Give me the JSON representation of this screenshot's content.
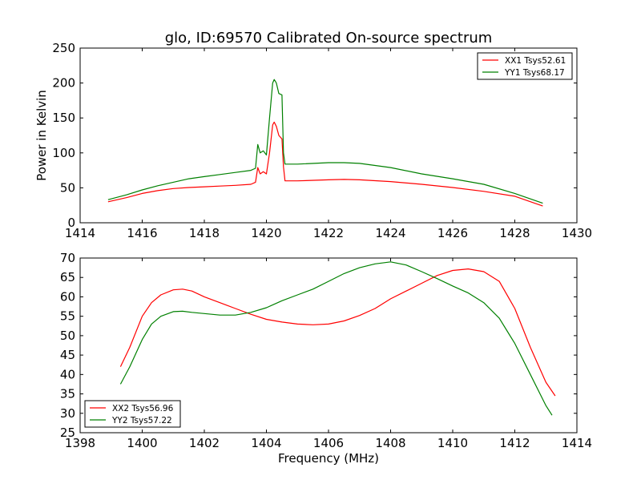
{
  "figure": {
    "title": "glo, ID:69570 Calibrated On-source spectrum",
    "xlabel": "Frequency (MHz)"
  },
  "colors": {
    "red": "#ff0000",
    "green": "#008000"
  },
  "chart_data": [
    {
      "type": "line",
      "ylabel": "Power in Kelvin",
      "xlim": [
        1414,
        1430
      ],
      "ylim": [
        0,
        250
      ],
      "xticks": [
        "1414",
        "1416",
        "1418",
        "1420",
        "1422",
        "1424",
        "1426",
        "1428",
        "1430"
      ],
      "yticks": [
        "0",
        "50",
        "100",
        "150",
        "200",
        "250"
      ],
      "legend": "top-right",
      "series": [
        {
          "name": "XX1 Tsys52.61",
          "color": "#ff0000",
          "points": [
            [
              1414.9,
              30
            ],
            [
              1415.5,
              36
            ],
            [
              1416.0,
              42
            ],
            [
              1416.5,
              46
            ],
            [
              1417.0,
              49
            ],
            [
              1417.5,
              50.5
            ],
            [
              1418.0,
              51.5
            ],
            [
              1418.5,
              52.5
            ],
            [
              1419.0,
              53.5
            ],
            [
              1419.5,
              55
            ],
            [
              1419.65,
              58
            ],
            [
              1419.72,
              79
            ],
            [
              1419.8,
              70
            ],
            [
              1419.9,
              73
            ],
            [
              1420.0,
              70
            ],
            [
              1420.1,
              100
            ],
            [
              1420.2,
              140
            ],
            [
              1420.25,
              144
            ],
            [
              1420.32,
              138
            ],
            [
              1420.4,
              125
            ],
            [
              1420.5,
              120
            ],
            [
              1420.55,
              80
            ],
            [
              1420.6,
              60
            ],
            [
              1421.0,
              60
            ],
            [
              1422.0,
              61.5
            ],
            [
              1422.5,
              62
            ],
            [
              1423.0,
              61.5
            ],
            [
              1424.0,
              59
            ],
            [
              1425.0,
              55
            ],
            [
              1426.0,
              50.5
            ],
            [
              1427.0,
              45
            ],
            [
              1428.0,
              38
            ],
            [
              1428.9,
              24
            ]
          ]
        },
        {
          "name": "YY1 Tsys68.17",
          "color": "#008000",
          "points": [
            [
              1414.9,
              33
            ],
            [
              1415.5,
              40
            ],
            [
              1416.0,
              47
            ],
            [
              1416.5,
              53
            ],
            [
              1417.0,
              58
            ],
            [
              1417.5,
              63
            ],
            [
              1418.0,
              66
            ],
            [
              1418.5,
              69
            ],
            [
              1419.0,
              72
            ],
            [
              1419.5,
              75
            ],
            [
              1419.65,
              78
            ],
            [
              1419.72,
              112
            ],
            [
              1419.8,
              100
            ],
            [
              1419.9,
              103
            ],
            [
              1420.0,
              97
            ],
            [
              1420.1,
              150
            ],
            [
              1420.2,
              200
            ],
            [
              1420.25,
              205
            ],
            [
              1420.32,
              200
            ],
            [
              1420.4,
              185
            ],
            [
              1420.5,
              183
            ],
            [
              1420.55,
              100
            ],
            [
              1420.6,
              84
            ],
            [
              1421.0,
              84
            ],
            [
              1422.0,
              86
            ],
            [
              1422.5,
              86
            ],
            [
              1423.0,
              85
            ],
            [
              1424.0,
              79
            ],
            [
              1425.0,
              70
            ],
            [
              1426.0,
              63
            ],
            [
              1427.0,
              55
            ],
            [
              1428.0,
              42
            ],
            [
              1428.9,
              28
            ]
          ]
        }
      ]
    },
    {
      "type": "line",
      "xlabel": "Frequency (MHz)",
      "xlim": [
        1398,
        1414
      ],
      "ylim": [
        25,
        70
      ],
      "xticks": [
        "1398",
        "1400",
        "1402",
        "1404",
        "1406",
        "1408",
        "1410",
        "1412",
        "1414"
      ],
      "yticks": [
        "25",
        "30",
        "35",
        "40",
        "45",
        "50",
        "55",
        "60",
        "65",
        "70"
      ],
      "legend": "lower-left",
      "series": [
        {
          "name": "XX2 Tsys56.96",
          "color": "#ff0000",
          "points": [
            [
              1399.3,
              42
            ],
            [
              1399.6,
              47
            ],
            [
              1400.0,
              55
            ],
            [
              1400.3,
              58.5
            ],
            [
              1400.6,
              60.5
            ],
            [
              1401.0,
              61.8
            ],
            [
              1401.3,
              62
            ],
            [
              1401.6,
              61.5
            ],
            [
              1402.0,
              60
            ],
            [
              1402.5,
              58.5
            ],
            [
              1403.0,
              57
            ],
            [
              1403.5,
              55.5
            ],
            [
              1404.0,
              54.2
            ],
            [
              1404.5,
              53.5
            ],
            [
              1405.0,
              53
            ],
            [
              1405.5,
              52.8
            ],
            [
              1406.0,
              53
            ],
            [
              1406.5,
              53.8
            ],
            [
              1407.0,
              55.2
            ],
            [
              1407.5,
              57
            ],
            [
              1408.0,
              59.5
            ],
            [
              1408.5,
              61.5
            ],
            [
              1409.0,
              63.5
            ],
            [
              1409.5,
              65.5
            ],
            [
              1410.0,
              66.8
            ],
            [
              1410.5,
              67.2
            ],
            [
              1411.0,
              66.5
            ],
            [
              1411.5,
              64
            ],
            [
              1412.0,
              57
            ],
            [
              1412.5,
              47
            ],
            [
              1413.0,
              38
            ],
            [
              1413.3,
              34.5
            ]
          ]
        },
        {
          "name": "YY2 Tsys57.22",
          "color": "#008000",
          "points": [
            [
              1399.3,
              37.5
            ],
            [
              1399.6,
              42
            ],
            [
              1400.0,
              49
            ],
            [
              1400.3,
              53
            ],
            [
              1400.6,
              55
            ],
            [
              1401.0,
              56.2
            ],
            [
              1401.3,
              56.3
            ],
            [
              1401.6,
              56
            ],
            [
              1402.0,
              55.7
            ],
            [
              1402.5,
              55.3
            ],
            [
              1403.0,
              55.3
            ],
            [
              1403.5,
              56
            ],
            [
              1404.0,
              57.2
            ],
            [
              1404.5,
              59
            ],
            [
              1405.0,
              60.5
            ],
            [
              1405.5,
              62
            ],
            [
              1406.0,
              64
            ],
            [
              1406.5,
              66
            ],
            [
              1407.0,
              67.5
            ],
            [
              1407.5,
              68.5
            ],
            [
              1408.0,
              69
            ],
            [
              1408.5,
              68.2
            ],
            [
              1409.0,
              66.5
            ],
            [
              1409.5,
              64.7
            ],
            [
              1410.0,
              62.8
            ],
            [
              1410.5,
              61
            ],
            [
              1411.0,
              58.5
            ],
            [
              1411.5,
              54.5
            ],
            [
              1412.0,
              48
            ],
            [
              1412.5,
              40
            ],
            [
              1413.0,
              32
            ],
            [
              1413.2,
              29.5
            ]
          ]
        }
      ]
    }
  ]
}
